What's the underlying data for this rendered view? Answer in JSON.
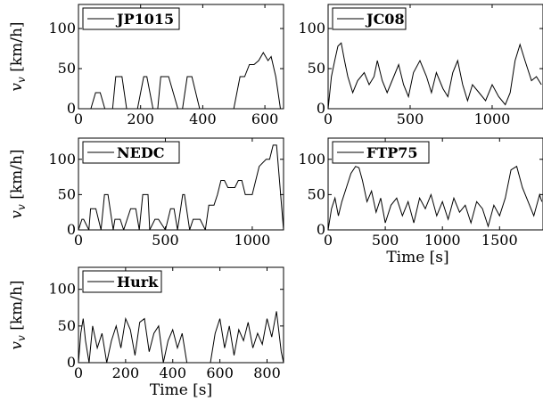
{
  "chart_data": [
    {
      "type": "line",
      "series": [
        {
          "name": "JP1015",
          "x": [
            0,
            40,
            55,
            70,
            85,
            110,
            120,
            140,
            155,
            165,
            190,
            210,
            220,
            240,
            255,
            265,
            290,
            320,
            335,
            350,
            365,
            390,
            410,
            440,
            470,
            485,
            500,
            520,
            535,
            550,
            565,
            580,
            595,
            610,
            620,
            635,
            650
          ],
          "y": [
            0,
            0,
            20,
            20,
            0,
            0,
            40,
            40,
            0,
            0,
            0,
            40,
            40,
            0,
            0,
            40,
            40,
            0,
            0,
            40,
            40,
            0,
            0,
            0,
            0,
            0,
            0,
            40,
            40,
            55,
            55,
            60,
            70,
            60,
            65,
            40,
            0
          ]
        }
      ],
      "xlim": [
        0,
        660
      ],
      "ylim": [
        0,
        130
      ],
      "xticks": [
        "0",
        "200",
        "400",
        "600"
      ],
      "xtick_values": [
        0,
        200,
        400,
        600
      ],
      "yticks": [
        "0",
        "50",
        "100"
      ],
      "ytick_values": [
        0,
        50,
        100
      ],
      "ylabel": "v_v [km/h]",
      "xlabel": ""
    },
    {
      "type": "line",
      "series": [
        {
          "name": "JC08",
          "x": [
            0,
            20,
            40,
            60,
            80,
            100,
            120,
            150,
            180,
            220,
            250,
            280,
            300,
            330,
            360,
            400,
            430,
            460,
            490,
            520,
            560,
            600,
            630,
            660,
            700,
            730,
            760,
            790,
            820,
            850,
            880,
            920,
            960,
            1000,
            1040,
            1080,
            1110,
            1140,
            1170,
            1200,
            1240,
            1270,
            1300
          ],
          "y": [
            0,
            40,
            60,
            78,
            82,
            60,
            40,
            20,
            35,
            45,
            30,
            40,
            60,
            35,
            20,
            40,
            55,
            30,
            15,
            45,
            60,
            40,
            20,
            45,
            25,
            15,
            45,
            60,
            30,
            10,
            30,
            20,
            10,
            30,
            15,
            5,
            20,
            60,
            80,
            60,
            35,
            40,
            30
          ]
        }
      ],
      "xlim": [
        0,
        1310
      ],
      "ylim": [
        0,
        130
      ],
      "xticks": [
        "0",
        "500",
        "1000"
      ],
      "xtick_values": [
        0,
        500,
        1000
      ],
      "yticks": [
        "0",
        "50",
        "100"
      ],
      "ytick_values": [
        0,
        50,
        100
      ],
      "ylabel": "",
      "xlabel": ""
    },
    {
      "type": "line",
      "series": [
        {
          "name": "NEDC",
          "x": [
            0,
            20,
            30,
            60,
            70,
            100,
            130,
            150,
            170,
            200,
            210,
            240,
            260,
            300,
            330,
            350,
            370,
            400,
            410,
            440,
            460,
            500,
            530,
            550,
            570,
            600,
            610,
            640,
            660,
            700,
            730,
            750,
            780,
            800,
            820,
            840,
            860,
            900,
            920,
            940,
            960,
            1000,
            1040,
            1080,
            1100,
            1120,
            1140,
            1160,
            1180
          ],
          "y": [
            0,
            15,
            15,
            0,
            30,
            30,
            0,
            50,
            50,
            0,
            15,
            15,
            0,
            30,
            30,
            0,
            50,
            50,
            0,
            15,
            15,
            0,
            30,
            30,
            0,
            50,
            50,
            0,
            15,
            15,
            0,
            35,
            35,
            50,
            70,
            70,
            60,
            60,
            70,
            70,
            50,
            50,
            90,
            100,
            100,
            120,
            120,
            60,
            0
          ]
        }
      ],
      "xlim": [
        0,
        1180
      ],
      "ylim": [
        0,
        130
      ],
      "xticks": [
        "0",
        "500",
        "1000"
      ],
      "xtick_values": [
        0,
        500,
        1000
      ],
      "yticks": [
        "0",
        "50",
        "100"
      ],
      "ytick_values": [
        0,
        50,
        100
      ],
      "ylabel": "v_v [km/h]",
      "xlabel": ""
    },
    {
      "type": "line",
      "series": [
        {
          "name": "FTP75",
          "x": [
            0,
            30,
            60,
            90,
            120,
            160,
            200,
            240,
            270,
            300,
            340,
            380,
            420,
            460,
            500,
            550,
            600,
            650,
            700,
            750,
            800,
            850,
            900,
            950,
            1000,
            1050,
            1100,
            1150,
            1200,
            1250,
            1300,
            1350,
            1400,
            1450,
            1500,
            1550,
            1600,
            1650,
            1700,
            1750,
            1800,
            1850,
            1870
          ],
          "y": [
            0,
            30,
            45,
            20,
            40,
            60,
            80,
            90,
            88,
            70,
            40,
            55,
            25,
            45,
            10,
            35,
            45,
            20,
            40,
            10,
            45,
            30,
            50,
            20,
            40,
            15,
            45,
            25,
            35,
            10,
            40,
            30,
            5,
            35,
            20,
            45,
            85,
            90,
            60,
            40,
            20,
            50,
            40
          ]
        }
      ],
      "xlim": [
        0,
        1880
      ],
      "ylim": [
        0,
        130
      ],
      "xticks": [
        "0",
        "500",
        "1000",
        "1500"
      ],
      "xtick_values": [
        0,
        500,
        1000,
        1500
      ],
      "yticks": [
        "0",
        "50",
        "100"
      ],
      "ytick_values": [
        0,
        50,
        100
      ],
      "ylabel": "",
      "xlabel": "Time [s]"
    },
    {
      "type": "line",
      "series": [
        {
          "name": "Hurk",
          "x": [
            0,
            10,
            20,
            30,
            45,
            60,
            80,
            100,
            120,
            140,
            160,
            180,
            200,
            220,
            240,
            260,
            280,
            300,
            320,
            340,
            360,
            380,
            400,
            420,
            440,
            460,
            480,
            500,
            520,
            540,
            560,
            580,
            600,
            620,
            640,
            660,
            680,
            700,
            720,
            740,
            760,
            780,
            800,
            820,
            840,
            860,
            870
          ],
          "y": [
            0,
            40,
            60,
            30,
            0,
            50,
            20,
            40,
            0,
            30,
            50,
            20,
            60,
            45,
            10,
            55,
            60,
            15,
            40,
            50,
            0,
            30,
            45,
            20,
            40,
            0,
            0,
            0,
            0,
            0,
            0,
            40,
            60,
            20,
            50,
            10,
            45,
            30,
            55,
            20,
            40,
            25,
            60,
            35,
            70,
            15,
            0
          ]
        }
      ],
      "xlim": [
        0,
        870
      ],
      "ylim": [
        0,
        130
      ],
      "xticks": [
        "0",
        "200",
        "400",
        "600",
        "800"
      ],
      "xtick_values": [
        0,
        200,
        400,
        600,
        800
      ],
      "yticks": [
        "0",
        "50",
        "100"
      ],
      "ytick_values": [
        0,
        50,
        100
      ],
      "ylabel": "v_v [km/h]",
      "xlabel": "Time [s]"
    }
  ]
}
